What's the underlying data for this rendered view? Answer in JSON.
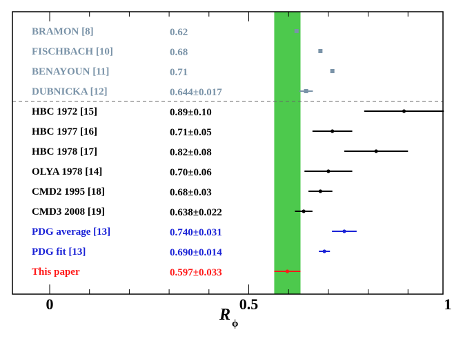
{
  "chart_data": {
    "type": "scatter",
    "title": "",
    "xlabel": "R",
    "xlabel_subscript": "ϕ",
    "xlim": [
      -0.1,
      1.0
    ],
    "xticks": [
      {
        "value": 0,
        "label": "0"
      },
      {
        "value": 0.5,
        "label": "0.5"
      },
      {
        "value": 1,
        "label": "1"
      }
    ],
    "band": {
      "min": 0.564,
      "max": 0.63,
      "color": "#4dc94d"
    },
    "colors": {
      "theory": "#7a93a8",
      "experiment": "#000000",
      "pdg": "#1a22d6",
      "this": "#ff1a1a",
      "dashed": "#666666"
    },
    "rows": [
      {
        "label": "BRAMON [8]",
        "value_text": "0.62",
        "x": 0.62,
        "err": 0,
        "group": "theory",
        "marker": "square"
      },
      {
        "label": "FISCHBACH [10]",
        "value_text": "0.68",
        "x": 0.68,
        "err": 0,
        "group": "theory",
        "marker": "square"
      },
      {
        "label": "BENAYOUN [11]",
        "value_text": "0.71",
        "x": 0.71,
        "err": 0,
        "group": "theory",
        "marker": "square"
      },
      {
        "label": "DUBNICKA [12]",
        "value_text": "0.644±0.017",
        "x": 0.644,
        "err": 0.017,
        "group": "theory",
        "marker": "square"
      },
      {
        "label": "HBC 1972 [15]",
        "value_text": "0.89±0.10",
        "x": 0.89,
        "err": 0.1,
        "group": "experiment",
        "marker": "dot"
      },
      {
        "label": "HBC 1977 [16]",
        "value_text": "0.71±0.05",
        "x": 0.71,
        "err": 0.05,
        "group": "experiment",
        "marker": "dot"
      },
      {
        "label": "HBC 1978 [17]",
        "value_text": "0.82±0.08",
        "x": 0.82,
        "err": 0.08,
        "group": "experiment",
        "marker": "dot"
      },
      {
        "label": "OLYA 1978 [14]",
        "value_text": "0.70±0.06",
        "x": 0.7,
        "err": 0.06,
        "group": "experiment",
        "marker": "dot"
      },
      {
        "label": "CMD2 1995 [18]",
        "value_text": "0.68±0.03",
        "x": 0.68,
        "err": 0.03,
        "group": "experiment",
        "marker": "dot"
      },
      {
        "label": "CMD3 2008 [19]",
        "value_text": "0.638±0.022",
        "x": 0.638,
        "err": 0.022,
        "group": "experiment",
        "marker": "dot"
      },
      {
        "label": "PDG average [13]",
        "value_text": "0.740±0.031",
        "x": 0.74,
        "err": 0.031,
        "group": "pdg",
        "marker": "dot"
      },
      {
        "label": "PDG fit [13]",
        "value_text": "0.690±0.014",
        "x": 0.69,
        "err": 0.014,
        "group": "pdg",
        "marker": "dot"
      },
      {
        "label": "This paper",
        "value_text": "0.597±0.033",
        "x": 0.597,
        "err": 0.033,
        "group": "this",
        "marker": "dot"
      }
    ]
  }
}
